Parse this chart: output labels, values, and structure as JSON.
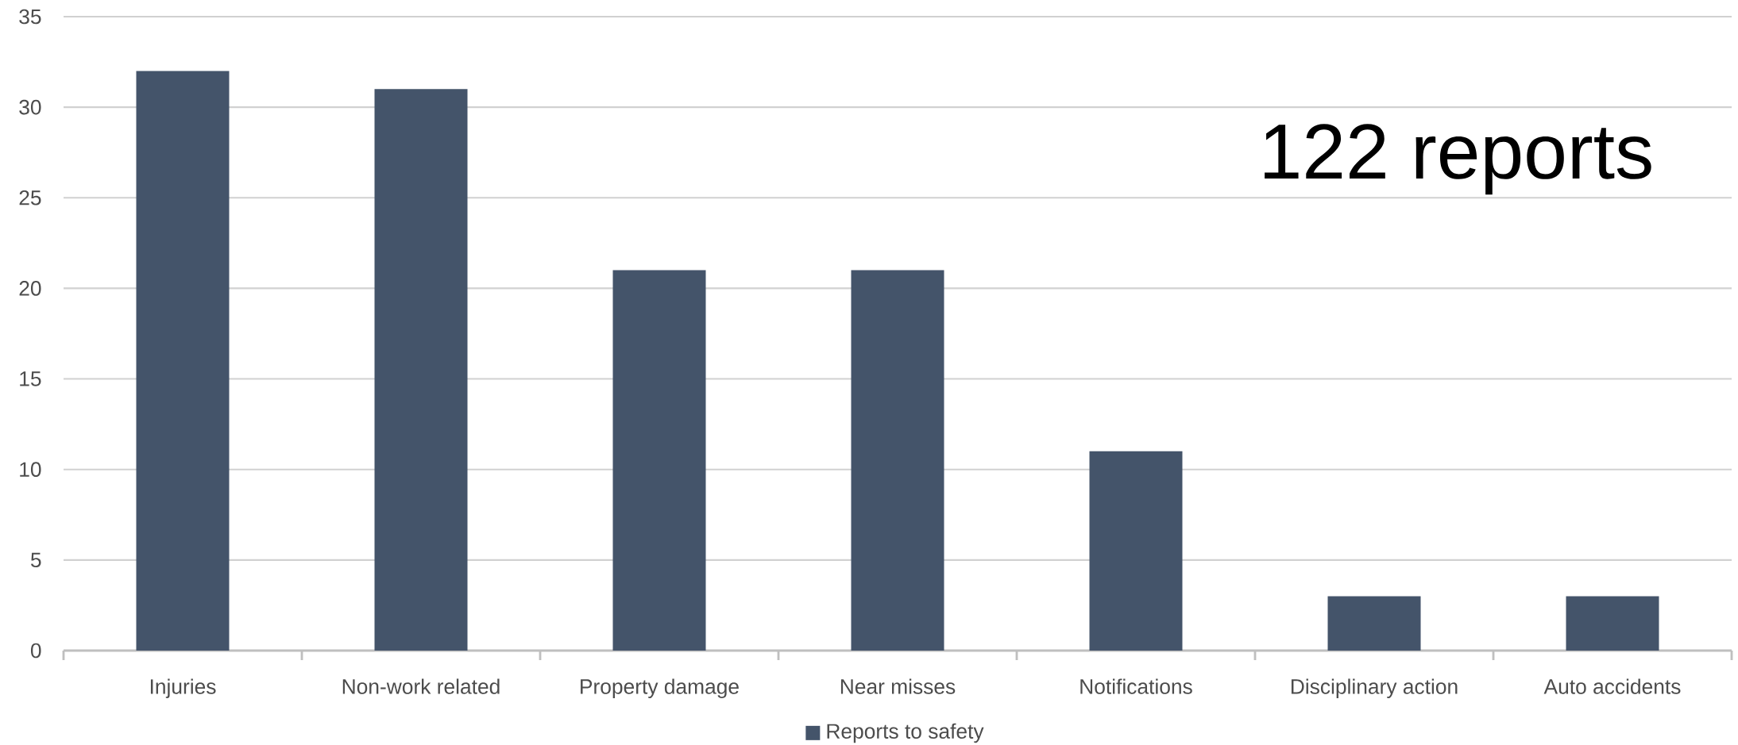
{
  "chart_data": {
    "type": "bar",
    "categories": [
      "Injuries",
      "Non-work related",
      "Property damage",
      "Near misses",
      "Notifications",
      "Disciplinary action",
      "Auto accidents"
    ],
    "series": [
      {
        "name": "Reports to safety",
        "color": "#44546a",
        "values": [
          32,
          31,
          21,
          21,
          11,
          3,
          3
        ]
      }
    ],
    "ylim": [
      0,
      35
    ],
    "yticks": [
      0,
      5,
      10,
      15,
      20,
      25,
      30,
      35
    ],
    "grid": "y",
    "legend": "bottom",
    "annotations": [
      "122 reports"
    ]
  }
}
